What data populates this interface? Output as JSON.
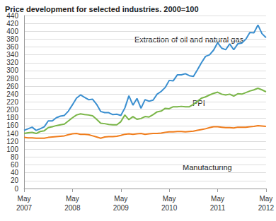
{
  "chart_data": {
    "type": "line",
    "title": "Price development for selected industries. 2000=100",
    "categories": [
      "May\n2007",
      null,
      null,
      null,
      null,
      null,
      null,
      null,
      null,
      null,
      null,
      null,
      "May\n2008",
      null,
      null,
      null,
      null,
      null,
      null,
      null,
      null,
      null,
      null,
      null,
      "May\n2009",
      null,
      null,
      null,
      null,
      null,
      null,
      null,
      null,
      null,
      null,
      null,
      "May\n2010",
      null,
      null,
      null,
      null,
      null,
      null,
      null,
      null,
      null,
      null,
      null,
      "May\n2011",
      null,
      null,
      null,
      null,
      null,
      null,
      null,
      null,
      null,
      null,
      null,
      "May\n2012"
    ],
    "series": [
      {
        "name": "Extraction of oil and natural gas",
        "color": "#3a8fd0",
        "values": [
          148,
          152,
          156,
          148,
          152,
          157,
          172,
          172,
          180,
          184,
          186,
          197,
          213,
          230,
          238,
          232,
          226,
          227,
          214,
          196,
          193,
          193,
          188,
          189,
          186,
          205,
          236,
          212,
          229,
          204,
          226,
          222,
          225,
          240,
          247,
          257,
          275,
          274,
          289,
          289,
          292,
          287,
          285,
          302,
          320,
          336,
          340,
          352,
          371,
          357,
          353,
          368,
          353,
          368,
          370,
          380,
          397,
          396,
          416,
          394,
          384
        ]
      },
      {
        "name": "PPI",
        "color": "#7ab648",
        "values": [
          140,
          142,
          143,
          140,
          145,
          147,
          155,
          157,
          160,
          162,
          164,
          172,
          180,
          187,
          190,
          188,
          187,
          185,
          176,
          166,
          165,
          163,
          162,
          162,
          170,
          187,
          175,
          183,
          176,
          178,
          183,
          182,
          188,
          195,
          197,
          204,
          203,
          208,
          208,
          209,
          208,
          208,
          214,
          222,
          230,
          233,
          238,
          242,
          245,
          240,
          238,
          240,
          235,
          241,
          240,
          244,
          248,
          251,
          255,
          251,
          246
        ]
      },
      {
        "name": "Manufacturing",
        "color": "#f07d1c",
        "values": [
          130,
          129,
          129,
          128,
          128,
          128,
          130,
          131,
          132,
          133,
          134,
          137,
          139,
          140,
          138,
          138,
          137,
          134,
          131,
          128,
          131,
          132,
          132,
          133,
          135,
          138,
          139,
          138,
          139,
          140,
          138,
          139,
          140,
          140,
          141,
          143,
          144,
          144,
          145,
          145,
          144,
          145,
          146,
          148,
          150,
          152,
          155,
          157,
          157,
          156,
          155,
          155,
          154,
          156,
          156,
          156,
          157,
          158,
          160,
          159,
          158
        ]
      }
    ],
    "ylim": [
      0,
      440
    ],
    "yticks": [
      0,
      20,
      40,
      60,
      80,
      100,
      120,
      140,
      160,
      180,
      200,
      220,
      240,
      260,
      280,
      300,
      320,
      340,
      360,
      380,
      400,
      420,
      440
    ],
    "grid": true
  }
}
